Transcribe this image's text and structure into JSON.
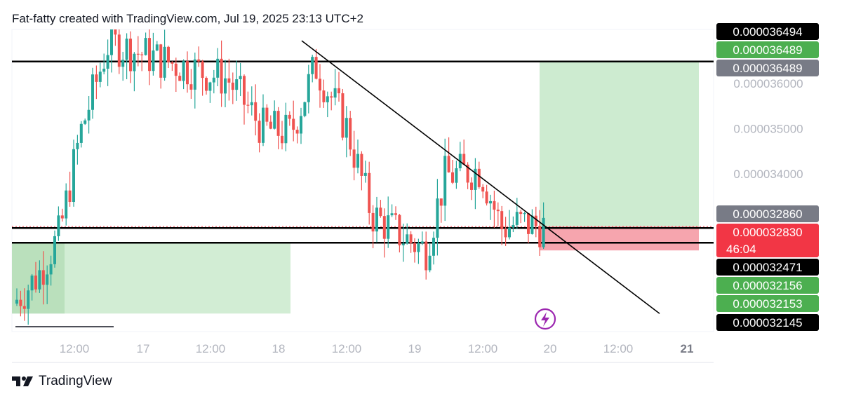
{
  "header": {
    "title": "Fat-fatty created with TradingView.com, Jul 19, 2025 23:13 UTC+2"
  },
  "footer": {
    "brand": "TradingView"
  },
  "icons": {
    "footer_logo": "tradingview-logo-icon",
    "flash": "lightning-icon"
  },
  "colors": {
    "up": "#26a69a",
    "down": "#ef5350",
    "target_zone": "#cdebd0",
    "stop_zone": "#f6a5ae",
    "demand_zone": "#d2edd4",
    "badge_dark": "#000000",
    "badge_gray": "#787b86",
    "badge_green": "#4caf50",
    "badge_red": "#f23645",
    "axis_text": "#b2b5be",
    "flash": "#9c27b0"
  },
  "chart_data": {
    "type": "candlestick",
    "title": "",
    "xlabel": "",
    "ylabel": "",
    "x_ticks": [
      "12:00",
      "17",
      "12:00",
      "18",
      "12:00",
      "19",
      "12:00",
      "20",
      "12:00",
      "21"
    ],
    "y_ticks": [
      "0.000036000",
      "0.000035000",
      "0.000034000"
    ],
    "price_badges": [
      {
        "label": "0.000036494",
        "kind": "black"
      },
      {
        "label": "0.000036489",
        "kind": "green"
      },
      {
        "label": "0.000036489",
        "kind": "gray"
      },
      {
        "label": "0.000032860",
        "kind": "gray"
      },
      {
        "label": "0.000032830",
        "sublabel": "46:04",
        "kind": "red"
      },
      {
        "label": "0.000032471",
        "kind": "black"
      },
      {
        "label": "0.000032156",
        "kind": "green"
      },
      {
        "label": "0.000032153",
        "kind": "green"
      },
      {
        "label": "0.000032145",
        "kind": "black"
      }
    ],
    "horizontal_levels": [
      3.6489e-05,
      3.283e-05,
      3.2471e-05
    ],
    "current_price": 3.283e-05,
    "countdown": "46:04",
    "position": {
      "entry": 3.283e-05,
      "target": 3.6489e-05,
      "stop": 3.23e-05
    },
    "trend_line": {
      "from": 3.695e-05,
      "to": 3.09e-05
    },
    "demand_zone": {
      "top": 3.247e-05,
      "bottom": 3.09e-05
    },
    "y_range": [
      3.05e-05,
      3.72e-05
    ]
  }
}
